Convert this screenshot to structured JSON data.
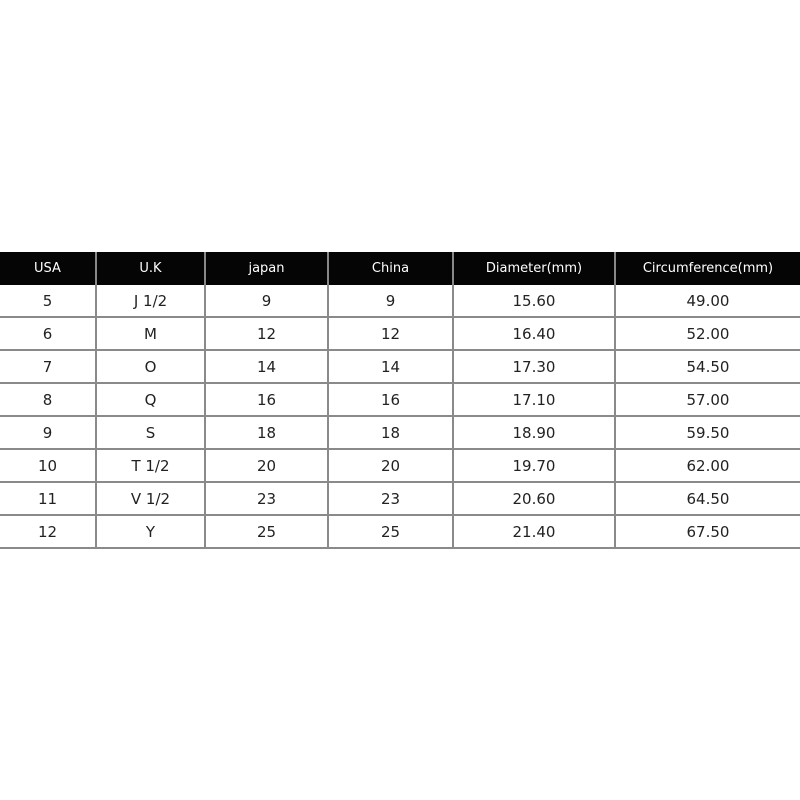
{
  "table": {
    "headers": [
      "USA",
      "U.K",
      "japan",
      "China",
      "Diameter(mm)",
      "Circumference(mm)"
    ],
    "rows": [
      [
        "5",
        "J 1/2",
        "9",
        "9",
        "15.60",
        "49.00"
      ],
      [
        "6",
        "M",
        "12",
        "12",
        "16.40",
        "52.00"
      ],
      [
        "7",
        "O",
        "14",
        "14",
        "17.30",
        "54.50"
      ],
      [
        "8",
        "Q",
        "16",
        "16",
        "17.10",
        "57.00"
      ],
      [
        "9",
        "S",
        "18",
        "18",
        "18.90",
        "59.50"
      ],
      [
        "10",
        "T 1/2",
        "20",
        "20",
        "19.70",
        "62.00"
      ],
      [
        "11",
        "V 1/2",
        "23",
        "23",
        "20.60",
        "64.50"
      ],
      [
        "12",
        "Y",
        "25",
        "25",
        "21.40",
        "67.50"
      ]
    ]
  }
}
